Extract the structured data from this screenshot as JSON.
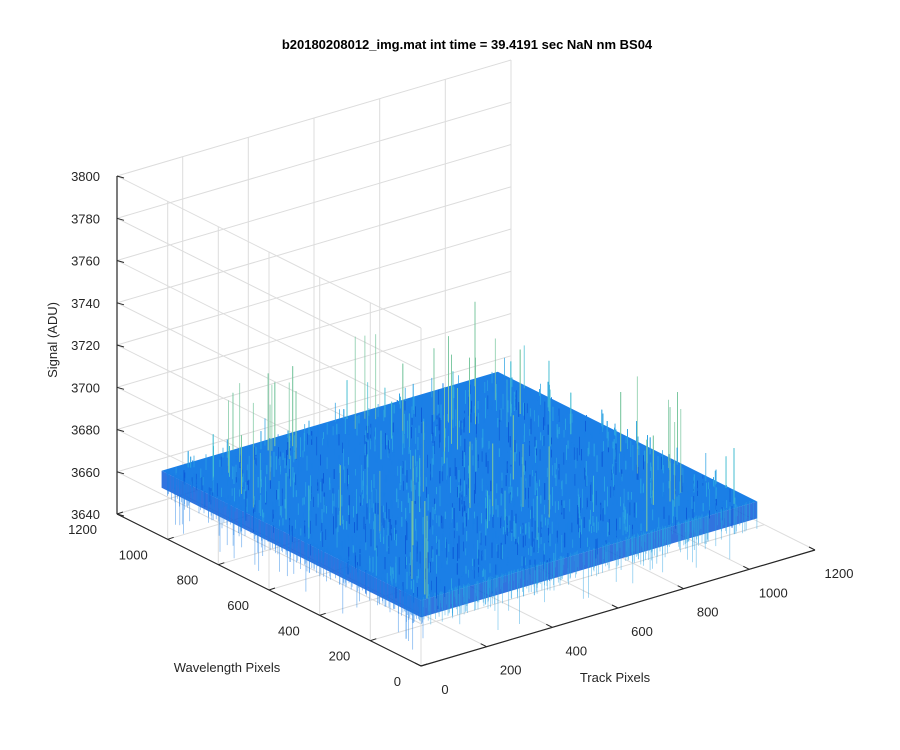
{
  "chart_data": {
    "type": "surface",
    "title": "b20180208012_img.mat int time = 39.4191 sec  NaN nm BS04",
    "xlabel": "Track Pixels",
    "ylabel": "Wavelength Pixels",
    "zlabel": "Signal (ADU)",
    "x_ticks": [
      0,
      200,
      400,
      600,
      800,
      1000,
      1200
    ],
    "y_ticks": [
      0,
      200,
      400,
      600,
      800,
      1000,
      1200
    ],
    "z_ticks": [
      3640,
      3660,
      3680,
      3700,
      3720,
      3740,
      3760,
      3780,
      3800
    ],
    "xlim": [
      0,
      1200
    ],
    "ylim": [
      0,
      1200
    ],
    "zlim": [
      3640,
      3800
    ],
    "x_extent": [
      0,
      1024
    ],
    "y_extent": [
      0,
      1024
    ],
    "signal_mean": 3671,
    "signal_noise_range": [
      3645,
      3740
    ],
    "grid": true,
    "colormap": "parula",
    "surface_colors": [
      "#0d5cd9",
      "#1b7fe6",
      "#2aa2e2",
      "#43bcd0",
      "#7ac6a0"
    ]
  },
  "labels": {
    "title": "b20180208012_img.mat int time = 39.4191 sec  NaN nm BS04",
    "xlabel": "Track Pixels",
    "ylabel": "Wavelength Pixels",
    "zlabel": "Signal (ADU)"
  }
}
